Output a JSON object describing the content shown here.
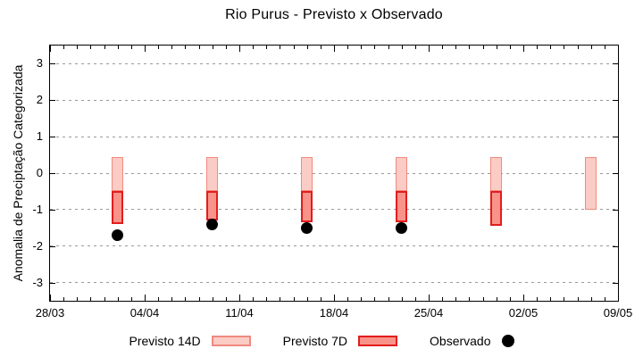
{
  "chart_data": {
    "type": "bar",
    "title": "Rio Purus - Previsto x Observado",
    "xlabel": "",
    "ylabel": "Anomalia de Preciptação Categorizada",
    "ylim": [
      -3.5,
      3.5
    ],
    "xlim_days": [
      0,
      42
    ],
    "grid": "horizontal dotted at integer y ticks",
    "legend_position": "bottom-center",
    "y_ticks": [
      -3,
      -2,
      -1,
      0,
      1,
      2,
      3
    ],
    "x_ticks": [
      {
        "day": 0,
        "label": "28/03"
      },
      {
        "day": 7,
        "label": "04/04"
      },
      {
        "day": 14,
        "label": "11/04"
      },
      {
        "day": 21,
        "label": "18/04"
      },
      {
        "day": 28,
        "label": "25/04"
      },
      {
        "day": 35,
        "label": "02/05"
      },
      {
        "day": 42,
        "label": "09/05"
      }
    ],
    "x_minor_tick_every_days": 1,
    "series": [
      {
        "name": "Previsto 14D",
        "type": "bar",
        "fill": "#fbccc5",
        "border": "#f08a7e",
        "bars": [
          {
            "date": "02/04",
            "day": 5,
            "top": 0.45,
            "bottom": -0.5
          },
          {
            "date": "09/04",
            "day": 12,
            "top": 0.45,
            "bottom": -0.5
          },
          {
            "date": "16/04",
            "day": 19,
            "top": 0.45,
            "bottom": -0.5
          },
          {
            "date": "23/04",
            "day": 26,
            "top": 0.45,
            "bottom": -0.5
          },
          {
            "date": "30/04",
            "day": 33,
            "top": 0.45,
            "bottom": -0.5
          },
          {
            "date": "07/05",
            "day": 40,
            "top": 0.45,
            "bottom": -1.0
          }
        ]
      },
      {
        "name": "Previsto 7D",
        "type": "bar",
        "fill": "#f9938a",
        "border": "#e21d1d",
        "bars": [
          {
            "date": "02/04",
            "day": 5,
            "top": -0.5,
            "bottom": -1.4
          },
          {
            "date": "09/04",
            "day": 12,
            "top": -0.5,
            "bottom": -1.3
          },
          {
            "date": "16/04",
            "day": 19,
            "top": -0.5,
            "bottom": -1.35
          },
          {
            "date": "23/04",
            "day": 26,
            "top": -0.5,
            "bottom": -1.35
          },
          {
            "date": "30/04",
            "day": 33,
            "top": -0.5,
            "bottom": -1.45
          }
        ]
      },
      {
        "name": "Observado",
        "type": "scatter",
        "color": "#000000",
        "points": [
          {
            "date": "02/04",
            "day": 5,
            "value": -1.7
          },
          {
            "date": "09/04",
            "day": 12,
            "value": -1.4
          },
          {
            "date": "16/04",
            "day": 19,
            "value": -1.5
          },
          {
            "date": "23/04",
            "day": 26,
            "value": -1.5
          }
        ]
      }
    ]
  }
}
